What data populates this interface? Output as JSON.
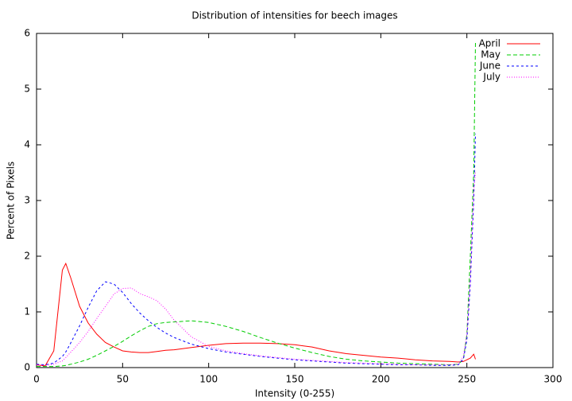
{
  "chart_data": {
    "type": "line",
    "title": "Distribution of intensities for beech images",
    "x_label": "Intensity (0-255)",
    "y_label": "Percent of Pixels",
    "x": [
      0,
      5,
      10,
      15,
      17,
      20,
      25,
      30,
      35,
      40,
      45,
      50,
      55,
      60,
      65,
      70,
      75,
      80,
      90,
      100,
      110,
      120,
      130,
      140,
      150,
      160,
      170,
      180,
      190,
      200,
      210,
      220,
      230,
      240,
      245,
      248,
      250,
      252,
      254,
      255
    ],
    "series": [
      {
        "name": "April",
        "color": "#ff0000",
        "dash": "none",
        "values": [
          0.05,
          0.03,
          0.3,
          1.75,
          1.87,
          1.6,
          1.1,
          0.8,
          0.6,
          0.45,
          0.37,
          0.3,
          0.28,
          0.27,
          0.27,
          0.29,
          0.31,
          0.32,
          0.36,
          0.4,
          0.43,
          0.44,
          0.44,
          0.43,
          0.41,
          0.37,
          0.3,
          0.25,
          0.22,
          0.19,
          0.17,
          0.14,
          0.12,
          0.11,
          0.1,
          0.11,
          0.14,
          0.17,
          0.24,
          0.15
        ]
      },
      {
        "name": "May",
        "color": "#00cc00",
        "dash": "5,3",
        "values": [
          0.02,
          0.02,
          0.02,
          0.03,
          0.04,
          0.06,
          0.1,
          0.15,
          0.22,
          0.3,
          0.38,
          0.47,
          0.57,
          0.66,
          0.74,
          0.79,
          0.81,
          0.82,
          0.84,
          0.81,
          0.74,
          0.65,
          0.54,
          0.44,
          0.35,
          0.27,
          0.2,
          0.15,
          0.12,
          0.1,
          0.08,
          0.07,
          0.06,
          0.05,
          0.06,
          0.15,
          0.6,
          2.0,
          3.5,
          5.85
        ]
      },
      {
        "name": "June",
        "color": "#0000ff",
        "dash": "3,3",
        "values": [
          0.06,
          0.05,
          0.08,
          0.2,
          0.28,
          0.45,
          0.75,
          1.08,
          1.38,
          1.54,
          1.5,
          1.35,
          1.15,
          0.98,
          0.84,
          0.72,
          0.62,
          0.54,
          0.42,
          0.34,
          0.28,
          0.24,
          0.2,
          0.17,
          0.14,
          0.12,
          0.1,
          0.08,
          0.07,
          0.06,
          0.05,
          0.05,
          0.04,
          0.04,
          0.05,
          0.15,
          0.5,
          1.5,
          3.0,
          4.2
        ]
      },
      {
        "name": "July",
        "color": "#ff00ff",
        "dash": "1,2",
        "values": [
          0.05,
          0.04,
          0.06,
          0.12,
          0.18,
          0.28,
          0.45,
          0.65,
          0.88,
          1.1,
          1.32,
          1.42,
          1.43,
          1.33,
          1.27,
          1.2,
          1.05,
          0.85,
          0.55,
          0.38,
          0.3,
          0.25,
          0.21,
          0.18,
          0.15,
          0.13,
          0.11,
          0.09,
          0.08,
          0.07,
          0.06,
          0.05,
          0.05,
          0.05,
          0.06,
          0.2,
          0.6,
          1.6,
          3.2,
          3.5
        ]
      }
    ],
    "xlim": [
      0,
      300
    ],
    "xticks": [
      0,
      50,
      100,
      150,
      200,
      250,
      300
    ],
    "ylim": [
      0,
      6
    ],
    "yticks": [
      0,
      1,
      2,
      3,
      4,
      5,
      6
    ],
    "legend": "top-right"
  }
}
